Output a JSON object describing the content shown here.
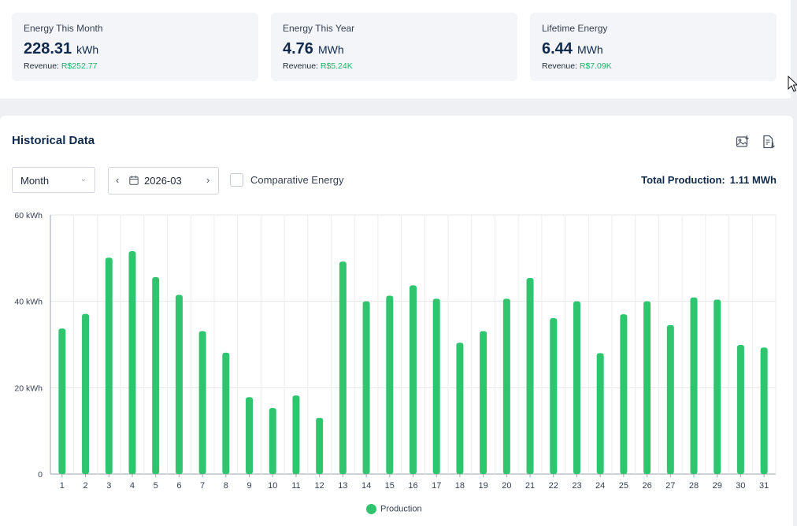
{
  "stats": [
    {
      "label": "Energy This Month",
      "value": "228.31",
      "unit": "kWh",
      "revenue_label": "Revenue:",
      "revenue": "R$252.77"
    },
    {
      "label": "Energy This Year",
      "value": "4.76",
      "unit": "MWh",
      "revenue_label": "Revenue:",
      "revenue": "R$5.24K"
    },
    {
      "label": "Lifetime Energy",
      "value": "6.44",
      "unit": "MWh",
      "revenue_label": "Revenue:",
      "revenue": "R$7.09K"
    }
  ],
  "historical": {
    "title": "Historical Data",
    "period_select": "Month",
    "date_value": "2026-03",
    "comparative_label": "Comparative Energy",
    "total_label": "Total Production:",
    "total_value": "1.11 MWh",
    "icons": [
      "image-download-icon",
      "document-download-icon"
    ]
  },
  "colors": {
    "bar": "#2ec56e",
    "revenue": "#22b36a",
    "title": "#0f2a4a"
  },
  "chart_data": {
    "type": "bar",
    "categories": [
      "1",
      "2",
      "3",
      "4",
      "5",
      "6",
      "7",
      "8",
      "9",
      "10",
      "11",
      "12",
      "13",
      "14",
      "15",
      "16",
      "17",
      "18",
      "19",
      "20",
      "21",
      "22",
      "23",
      "24",
      "25",
      "26",
      "27",
      "28",
      "29",
      "30",
      "31"
    ],
    "series": [
      {
        "name": "Production",
        "values": [
          33.7,
          37.1,
          50.1,
          51.6,
          45.6,
          41.5,
          33.1,
          28.1,
          17.8,
          15.3,
          18.2,
          13.0,
          49.2,
          40.0,
          41.3,
          43.7,
          40.6,
          30.4,
          33.1,
          40.6,
          45.4,
          36.1,
          40.0,
          28.0,
          37.0,
          40.0,
          34.5,
          40.9,
          40.4,
          29.9,
          29.3
        ]
      }
    ],
    "ylim": [
      0,
      60
    ],
    "yticks": [
      "0",
      "20 kWh",
      "40 kWh",
      "60 kWh"
    ],
    "ytick_values": [
      0,
      20,
      40,
      60
    ],
    "grid": true,
    "legend": "bottom"
  }
}
